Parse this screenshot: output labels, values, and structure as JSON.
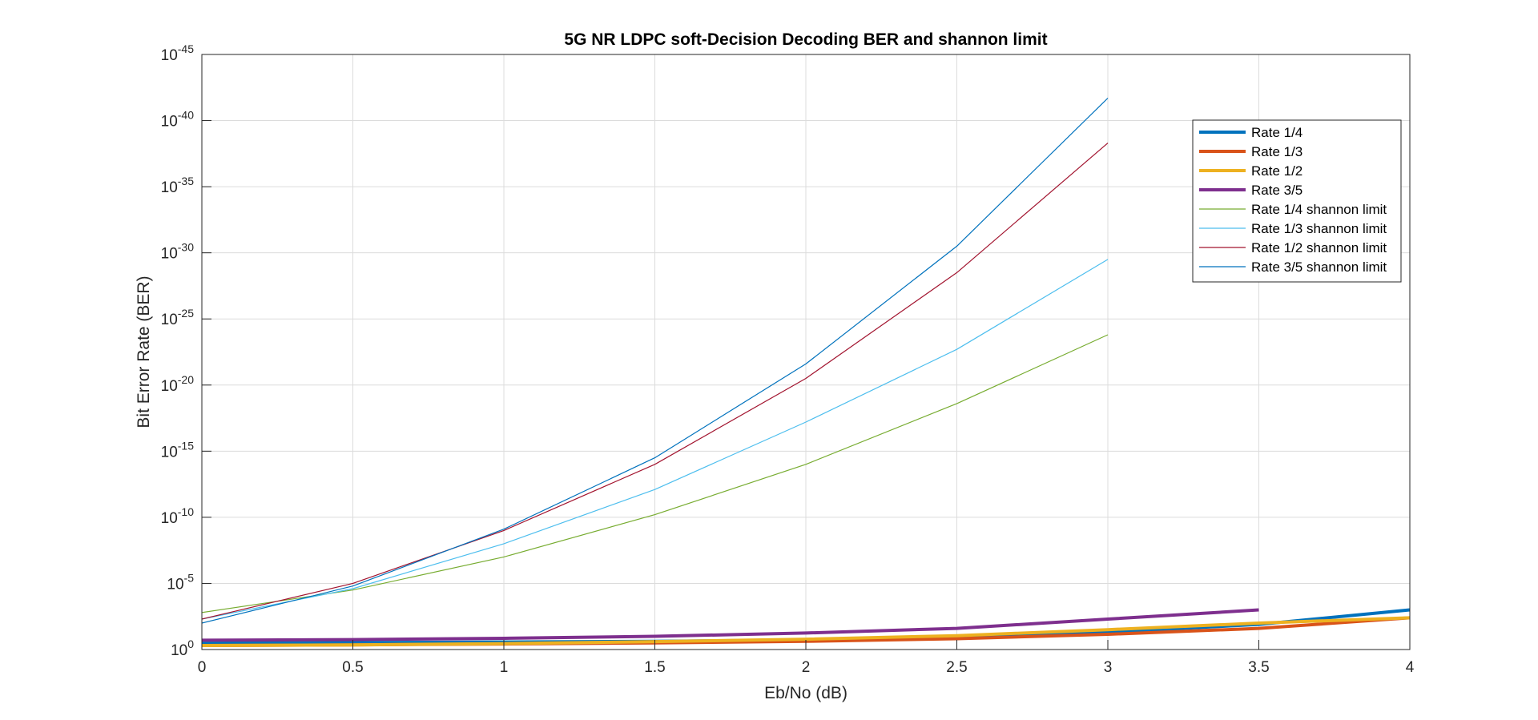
{
  "chart_data": {
    "type": "line",
    "title": "5G NR LDPC soft-Decision Decoding BER and shannon limit",
    "xlabel": "Eb/No (dB)",
    "ylabel": "Bit Error Rate (BER)",
    "xlim": [
      0,
      4
    ],
    "ylim_exp": [
      -45,
      0
    ],
    "yscale": "log",
    "grid": true,
    "minor_grid": true,
    "legend_position": "top-right",
    "x_ticks": [
      0,
      0.5,
      1,
      1.5,
      2,
      2.5,
      3,
      3.5,
      4
    ],
    "x_tick_labels": [
      "0",
      "0.5",
      "1",
      "1.5",
      "2",
      "2.5",
      "3",
      "3.5",
      "4"
    ],
    "y_tick_exponents": [
      0,
      -5,
      -10,
      -15,
      -20,
      -25,
      -30,
      -35,
      -40,
      -45
    ],
    "y_tick_base": "10",
    "y_tick_exps_text": [
      "0",
      "-5",
      "-10",
      "-15",
      "-20",
      "-25",
      "-30",
      "-35",
      "-40",
      "-45"
    ],
    "series": [
      {
        "name": "Rate 1/4",
        "color": "#0072BD",
        "thick": true,
        "x": [
          0,
          0.5,
          1,
          1.5,
          2,
          2.5,
          3,
          3.5,
          4
        ],
        "log10_y": [
          -0.48,
          -0.52,
          -0.57,
          -0.62,
          -0.72,
          -0.91,
          -1.3,
          -1.9,
          -3.0
        ]
      },
      {
        "name": "Rate 1/3",
        "color": "#D95319",
        "thick": true,
        "x": [
          0,
          0.5,
          1,
          1.5,
          2,
          2.5,
          3,
          3.5,
          4
        ],
        "log10_y": [
          -0.3,
          -0.35,
          -0.42,
          -0.5,
          -0.62,
          -0.82,
          -1.15,
          -1.6,
          -2.4
        ]
      },
      {
        "name": "Rate 1/2",
        "color": "#EDB120",
        "thick": true,
        "x": [
          0,
          0.5,
          1,
          1.5,
          2,
          2.5,
          3,
          3.5,
          4
        ],
        "log10_y": [
          -0.3,
          -0.35,
          -0.45,
          -0.6,
          -0.78,
          -1.05,
          -1.5,
          -2.0,
          -2.4
        ]
      },
      {
        "name": "Rate 3/5",
        "color": "#7E2F8E",
        "thick": true,
        "x": [
          0,
          0.5,
          1,
          1.5,
          2,
          2.5,
          3,
          3.5
        ],
        "log10_y": [
          -0.7,
          -0.75,
          -0.85,
          -1.0,
          -1.25,
          -1.6,
          -2.3,
          -3.0
        ]
      },
      {
        "name": "Rate 1/4 shannon limit",
        "color": "#77AC30",
        "thick": false,
        "x": [
          0,
          0.5,
          1,
          1.5,
          2,
          2.5,
          3
        ],
        "log10_y": [
          -2.8,
          -4.5,
          -7.0,
          -10.2,
          -14.0,
          -18.6,
          -23.8
        ]
      },
      {
        "name": "Rate 1/3 shannon limit",
        "color": "#4DBEEE",
        "thick": false,
        "x": [
          0,
          0.5,
          1,
          1.5,
          2,
          2.5,
          3
        ],
        "log10_y": [
          -2.3,
          -4.6,
          -8.0,
          -12.1,
          -17.2,
          -22.7,
          -29.5
        ]
      },
      {
        "name": "Rate 1/2 shannon limit",
        "color": "#A2142F",
        "thick": false,
        "x": [
          0,
          0.5,
          1,
          1.5,
          2,
          2.5,
          3
        ],
        "log10_y": [
          -2.3,
          -5.0,
          -9.0,
          -14.0,
          -20.5,
          -28.5,
          -38.3
        ]
      },
      {
        "name": "Rate 3/5 shannon limit",
        "color": "#0072BD",
        "thick": false,
        "x": [
          0,
          0.5,
          1,
          1.5,
          2,
          2.5,
          3
        ],
        "log10_y": [
          -2.0,
          -4.8,
          -9.1,
          -14.5,
          -21.6,
          -30.5,
          -41.7
        ]
      }
    ]
  }
}
